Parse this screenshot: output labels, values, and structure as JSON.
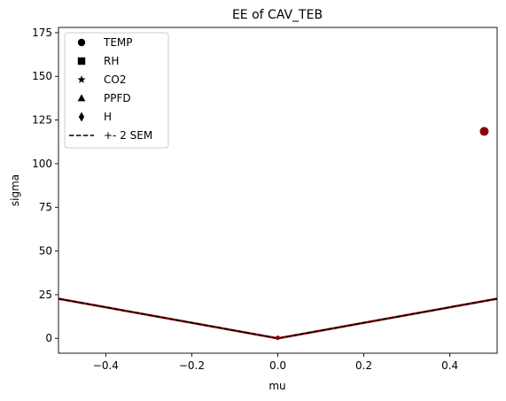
{
  "chart_data": {
    "type": "scatter",
    "title": "EE of CAV_TEB",
    "xlabel": "mu",
    "ylabel": "sigma",
    "xlim": [
      -0.51,
      0.51
    ],
    "ylim": [
      -8.5,
      178
    ],
    "x_ticks": [
      -0.4,
      -0.2,
      0.0,
      0.2,
      0.4
    ],
    "x_tick_labels": [
      "−0.4",
      "−0.2",
      "0.0",
      "0.2",
      "0.4"
    ],
    "y_ticks": [
      0,
      25,
      50,
      75,
      100,
      125,
      150,
      175
    ],
    "y_tick_labels": [
      "0",
      "25",
      "50",
      "75",
      "100",
      "125",
      "150",
      "175"
    ],
    "grid": false,
    "legend_position": "top-left",
    "legend": [
      {
        "label": "TEMP",
        "marker": "circle"
      },
      {
        "label": "RH",
        "marker": "square"
      },
      {
        "label": "CO2",
        "marker": "star"
      },
      {
        "label": "PPFD",
        "marker": "triangle"
      },
      {
        "label": "H",
        "marker": "diamond"
      },
      {
        "label": "+- 2 SEM",
        "marker": "dashed-line"
      }
    ],
    "points": [
      {
        "series": "TEMP",
        "marker": "circle",
        "x": 0.48,
        "y": 118.5,
        "color": "#8b0000"
      }
    ],
    "sem_line": {
      "label": "+- 2 SEM",
      "x": [
        -0.51,
        0.0,
        0.51
      ],
      "y": [
        22.7,
        0.0,
        22.7
      ],
      "color": "#000000",
      "shadow_color": "#8b0000"
    },
    "origin_point": {
      "x": 0.0,
      "y": 0.3,
      "color": "#8b0000"
    }
  }
}
